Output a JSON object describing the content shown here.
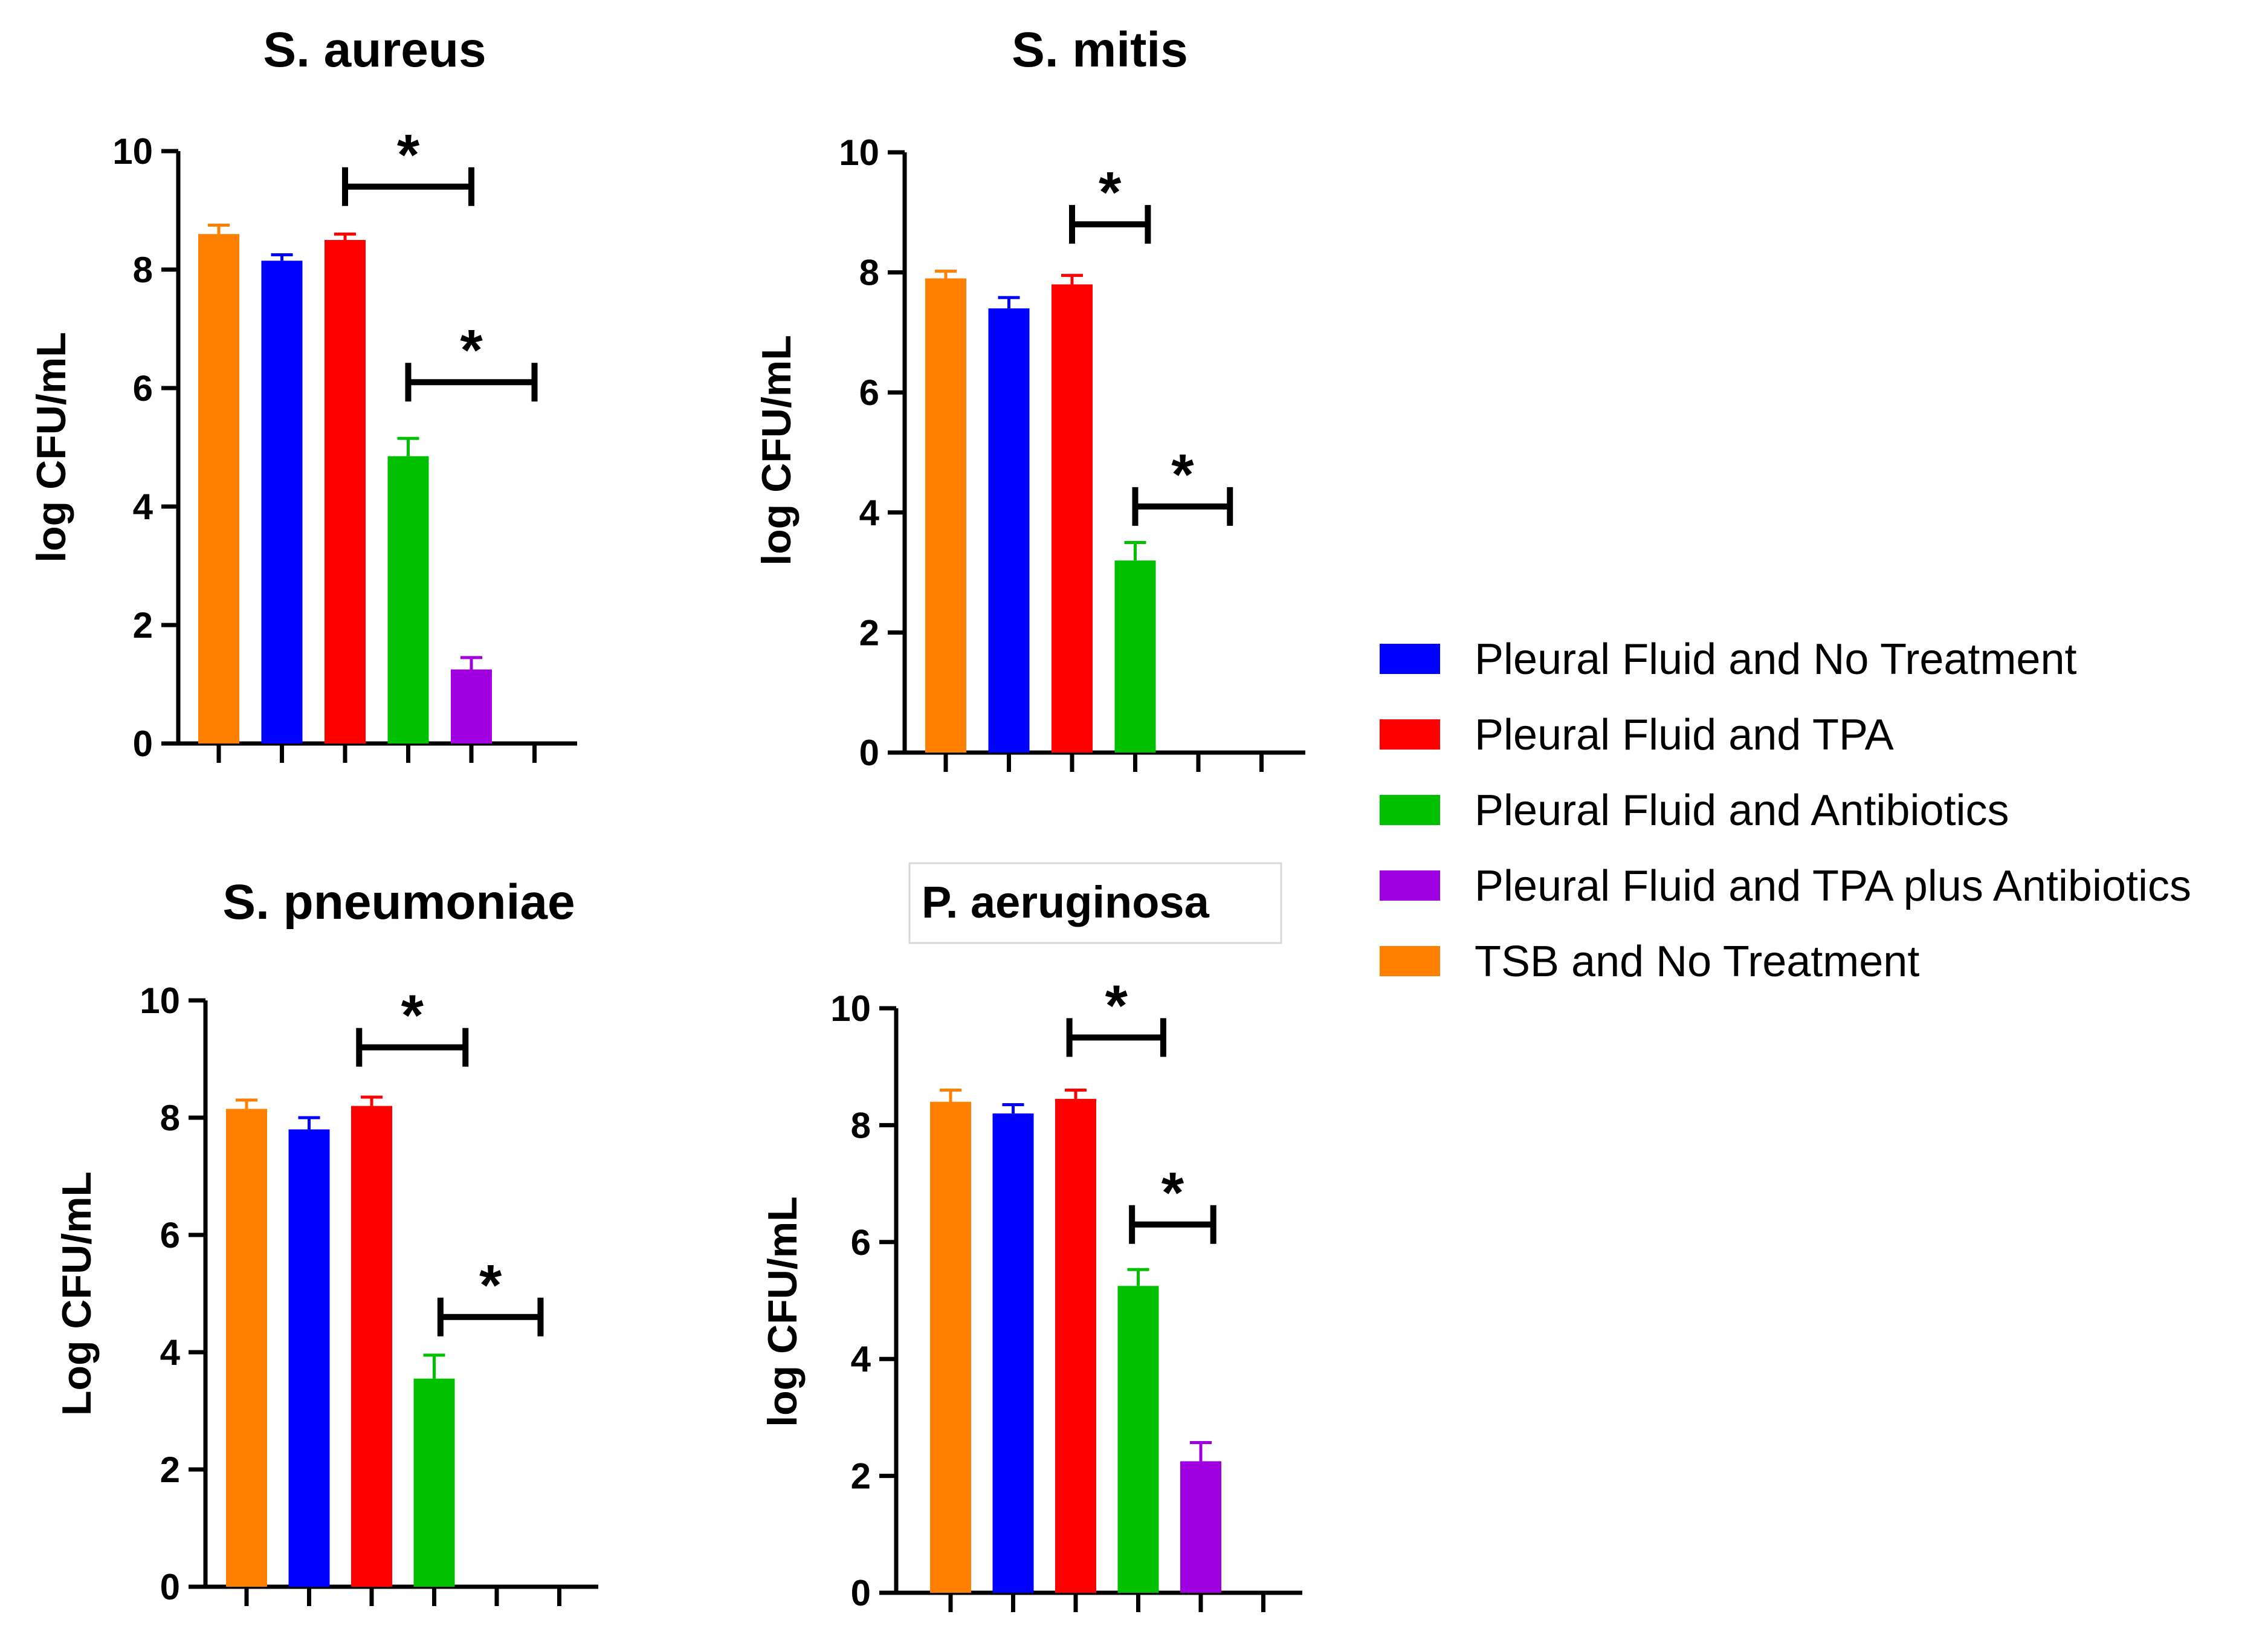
{
  "chart_data": [
    {
      "type": "bar",
      "title": "S. aureus",
      "ylabel": "log CFU/mL",
      "ylim": [
        0,
        10
      ],
      "yticks": [
        "0",
        "2",
        "4",
        "6",
        "8",
        "10"
      ],
      "categories": [
        "TSB and No Treatment",
        "Pleural Fluid and No Treatment",
        "Pleural Fluid and TPA",
        "Pleural Fluid and Antibiotics",
        "Pleural Fluid and TPA plus Antibiotics",
        ""
      ],
      "values": [
        8.6,
        8.15,
        8.5,
        4.85,
        1.25,
        null
      ],
      "errors": [
        0.15,
        0.1,
        0.1,
        0.3,
        0.2,
        null
      ],
      "significance": [
        {
          "from": 2,
          "to": 4,
          "y": 9.4,
          "label": "*"
        },
        {
          "from": 3,
          "to": 5,
          "y": 6.1,
          "label": "*"
        }
      ]
    },
    {
      "type": "bar",
      "title": "S. mitis",
      "ylabel": "log CFU/mL",
      "ylim": [
        0,
        10
      ],
      "yticks": [
        "0",
        "2",
        "4",
        "6",
        "8",
        "10"
      ],
      "categories": [
        "TSB and No Treatment",
        "Pleural Fluid and No Treatment",
        "Pleural Fluid and TPA",
        "Pleural Fluid and Antibiotics",
        "Pleural Fluid and TPA plus Antibiotics",
        ""
      ],
      "values": [
        7.9,
        7.4,
        7.8,
        3.2,
        null,
        null
      ],
      "errors": [
        0.12,
        0.18,
        0.15,
        0.3,
        null,
        null
      ],
      "significance": [
        {
          "from": 2,
          "to": 3.2,
          "y": 8.8,
          "label": "*"
        },
        {
          "from": 3,
          "to": 4.5,
          "y": 4.1,
          "label": "*"
        }
      ]
    },
    {
      "type": "bar",
      "title": "S. pneumoniae",
      "ylabel": "Log CFU/mL",
      "ylim": [
        0,
        10
      ],
      "yticks": [
        "0",
        "2",
        "4",
        "6",
        "8",
        "10"
      ],
      "categories": [
        "TSB and No Treatment",
        "Pleural Fluid and No Treatment",
        "Pleural Fluid and TPA",
        "Pleural Fluid and Antibiotics",
        "Pleural Fluid and TPA plus Antibiotics",
        ""
      ],
      "values": [
        8.15,
        7.8,
        8.2,
        3.55,
        null,
        null
      ],
      "errors": [
        0.15,
        0.2,
        0.15,
        0.4,
        null,
        null
      ],
      "significance": [
        {
          "from": 1.8,
          "to": 3.5,
          "y": 9.2,
          "label": "*"
        },
        {
          "from": 3.1,
          "to": 4.7,
          "y": 4.6,
          "label": "*"
        }
      ]
    },
    {
      "type": "bar",
      "title": "P. aeruginosa",
      "ylabel": "log CFU/mL",
      "ylim": [
        0,
        10
      ],
      "yticks": [
        "0",
        "2",
        "4",
        "6",
        "8",
        "10"
      ],
      "categories": [
        "TSB and No Treatment",
        "Pleural Fluid and No Treatment",
        "Pleural Fluid and TPA",
        "Pleural Fluid and Antibiotics",
        "Pleural Fluid and TPA plus Antibiotics",
        ""
      ],
      "values": [
        8.4,
        8.2,
        8.45,
        5.25,
        2.25,
        null
      ],
      "errors": [
        0.2,
        0.15,
        0.15,
        0.28,
        0.32,
        null
      ],
      "significance": [
        {
          "from": 1.9,
          "to": 3.4,
          "y": 9.5,
          "label": "*"
        },
        {
          "from": 2.9,
          "to": 4.2,
          "y": 6.3,
          "label": "*"
        }
      ]
    }
  ],
  "legend": [
    {
      "label": "Pleural Fluid and No Treatment",
      "color": "#0000ff"
    },
    {
      "label": "Pleural Fluid and TPA",
      "color": "#ff0000"
    },
    {
      "label": "Pleural Fluid and Antibiotics",
      "color": "#00c000"
    },
    {
      "label": "Pleural Fluid and TPA plus Antibiotics",
      "color": "#a000e0"
    },
    {
      "label": "TSB and No Treatment",
      "color": "#ff7f00"
    }
  ],
  "bar_colors": [
    "#ff7f00",
    "#0000ff",
    "#ff0000",
    "#00c000",
    "#a000e0",
    "#000000"
  ]
}
